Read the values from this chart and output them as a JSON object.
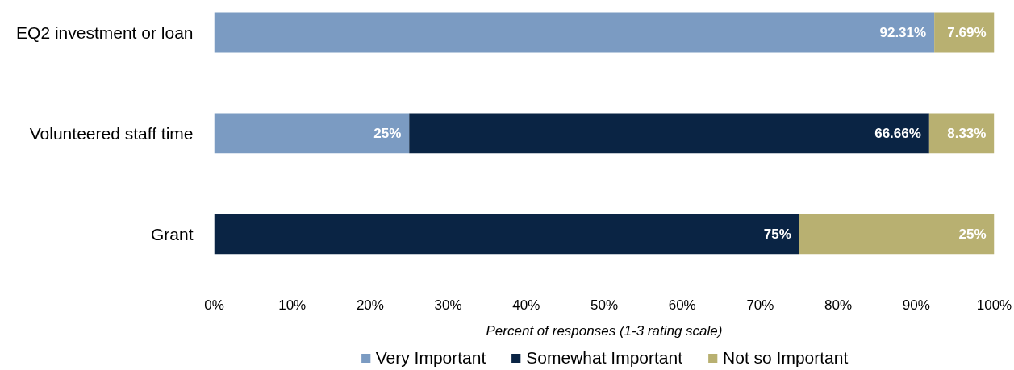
{
  "chart_data": {
    "type": "bar",
    "orientation": "horizontal",
    "stacked": true,
    "categories": [
      "EQ2 investment or loan",
      "Volunteered staff time",
      "Grant"
    ],
    "series": [
      {
        "name": "Very Important",
        "color": "#7b9bc2",
        "values": [
          92.31,
          25,
          null
        ],
        "value_labels": [
          "92.31%",
          "25%",
          null
        ]
      },
      {
        "name": "Somewhat Important",
        "color": "#0a2444",
        "values": [
          null,
          66.66,
          75
        ],
        "value_labels": [
          null,
          "66.66%",
          "75%"
        ]
      },
      {
        "name": "Not so Important",
        "color": "#b8b071",
        "values": [
          7.69,
          8.33,
          25
        ],
        "value_labels": [
          "7.69%",
          "8.33%",
          "25%"
        ]
      }
    ],
    "xlabel": "Percent of responses (1-3 rating scale)",
    "xlim": [
      0,
      100
    ],
    "xticks": [
      {
        "value": 0,
        "label": "0%"
      },
      {
        "value": 10,
        "label": "10%"
      },
      {
        "value": 20,
        "label": "20%"
      },
      {
        "value": 30,
        "label": "30%"
      },
      {
        "value": 40,
        "label": "40%"
      },
      {
        "value": 50,
        "label": "50%"
      },
      {
        "value": 60,
        "label": "60%"
      },
      {
        "value": 70,
        "label": "70%"
      },
      {
        "value": 80,
        "label": "80%"
      },
      {
        "value": 90,
        "label": "90%"
      },
      {
        "value": 100,
        "label": "100%"
      }
    ],
    "legend": "bottom"
  }
}
